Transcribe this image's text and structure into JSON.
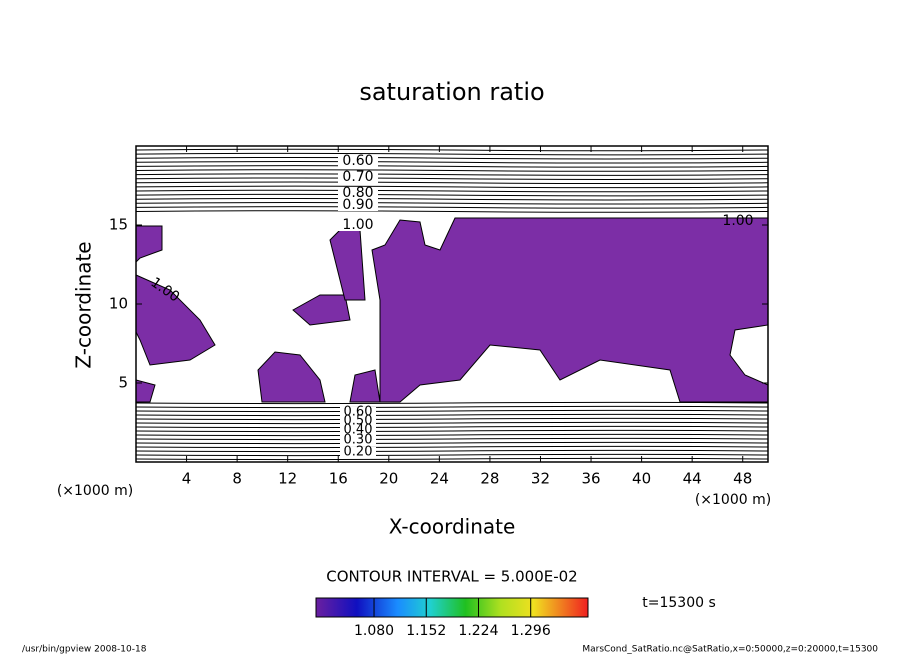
{
  "chart_data": {
    "type": "contour",
    "title": "saturation ratio",
    "xlabel": "X-coordinate",
    "ylabel": "Z-coordinate",
    "y_unit_label": "(×1000 m)",
    "x_unit_label": "(×1000 m)",
    "xlim": [
      0,
      50
    ],
    "ylim": [
      0,
      20
    ],
    "xticks": [
      4,
      8,
      12,
      16,
      20,
      24,
      28,
      32,
      36,
      40,
      44,
      48
    ],
    "yticks": [
      5,
      10,
      15
    ],
    "fill_color": "#7c2ea6",
    "upper_contour_labels": [
      "0.60",
      "0.70",
      "0.80",
      "0.90",
      "1.00"
    ],
    "lower_contour_labels": [
      "0.60",
      "0.50",
      "0.40",
      "0.30",
      "0.20"
    ],
    "side_contour_labels": [
      "1.00",
      "1.00"
    ],
    "contour_interval_label": "CONTOUR INTERVAL = 5.000E-02",
    "colorbar": {
      "clim": [
        1.0,
        1.375
      ],
      "ticks": [
        {
          "value": 1.08,
          "label": "1.080"
        },
        {
          "value": 1.152,
          "label": "1.152"
        },
        {
          "value": 1.224,
          "label": "1.224"
        },
        {
          "value": 1.296,
          "label": "1.296"
        }
      ]
    },
    "time_label": "t=15300 s"
  },
  "footer": {
    "left": "/usr/bin/gpview   2008-10-18",
    "right": "MarsCond_SatRatio.nc@SatRatio,x=0:50000,z=0:20000,t=15300"
  }
}
